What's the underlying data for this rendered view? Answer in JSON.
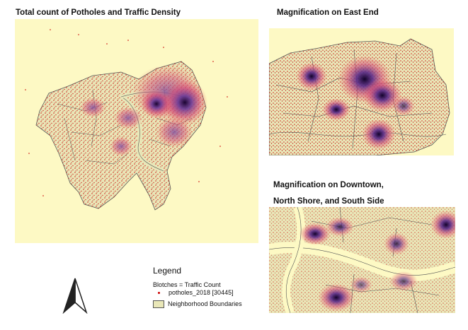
{
  "titles": {
    "main": "Total count of Potholes and Traffic Density",
    "east_end": "Magnification on East End",
    "downtown_line1": "Magnification on Downtown,",
    "downtown_line2": "North Shore, and South Side"
  },
  "legend": {
    "title": "Legend",
    "blotches": "Blotches = Traffic Count",
    "potholes": "potholes_2018 [30445]",
    "neighborhoods": "Neighborhood Boundaries"
  },
  "colors": {
    "background": "#fdf9c4",
    "pothole_points": "#cc0000",
    "boundary_fill": "#e9e7b8",
    "boundary_stroke": "#555555",
    "heat_core": "#2a0a4a",
    "heat_mid": "#7a4aa0",
    "heat_outer": "#e0507a"
  },
  "icons": {
    "north_arrow": "north-arrow-icon"
  }
}
